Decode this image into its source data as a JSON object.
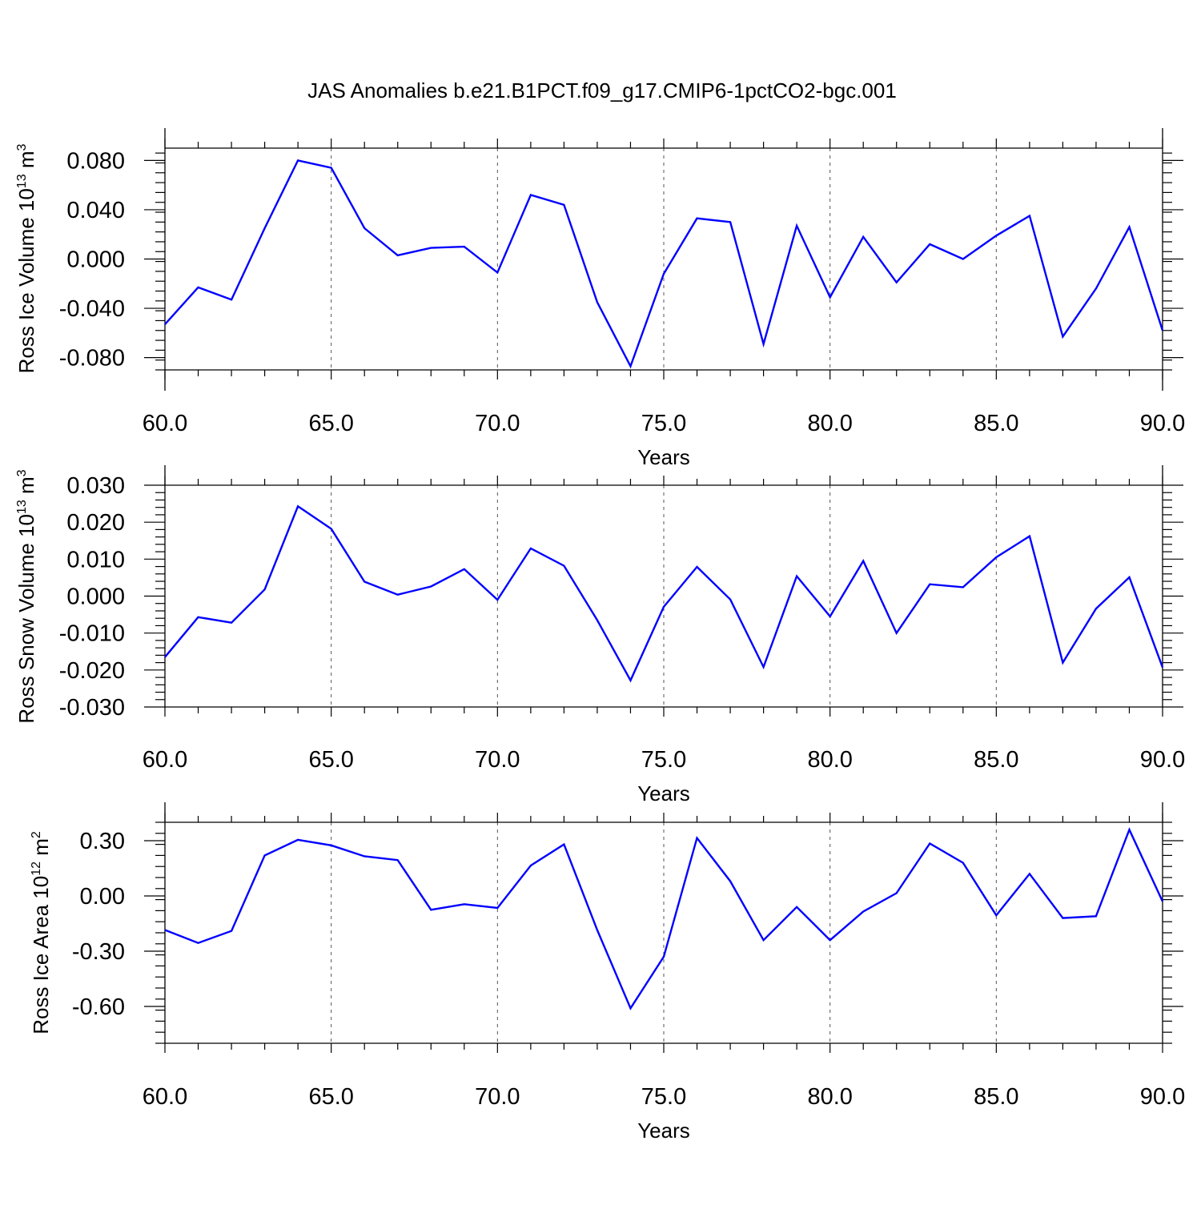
{
  "title": "JAS Anomalies b.e21.B1PCT.f09_g17.CMIP6-1pctCO2-bgc.001",
  "chart_data": [
    {
      "type": "line",
      "ylabel": "Ross Ice Volume 10",
      "ylabel_exp": "13",
      "ylabel_unit": " m",
      "ylabel_unit_exp": "3",
      "xlabel": "Years",
      "xlim": [
        60,
        90
      ],
      "ylim": [
        -0.09,
        0.09
      ],
      "xticks": [
        60,
        65,
        70,
        75,
        80,
        85,
        90
      ],
      "xtick_labels": [
        "60.0",
        "65.0",
        "70.0",
        "75.0",
        "80.0",
        "85.0",
        "90.0"
      ],
      "yticks": [
        -0.08,
        -0.04,
        0.0,
        0.04,
        0.08
      ],
      "ytick_labels": [
        "-0.080",
        "-0.040",
        "0.000",
        "0.040",
        "0.080"
      ],
      "grid": "vertical dashed",
      "line_color": "#0000ff",
      "x": [
        60,
        61,
        62,
        63,
        64,
        65,
        66,
        67,
        68,
        69,
        70,
        71,
        72,
        73,
        74,
        75,
        76,
        77,
        78,
        79,
        80,
        81,
        82,
        83,
        84,
        85,
        86,
        87,
        88,
        89,
        90
      ],
      "values": [
        -0.053,
        -0.023,
        -0.033,
        0.025,
        0.08,
        0.074,
        0.025,
        0.003,
        0.009,
        0.01,
        -0.011,
        0.052,
        0.044,
        -0.035,
        -0.087,
        -0.012,
        0.033,
        0.03,
        -0.069,
        0.027,
        -0.031,
        0.018,
        -0.019,
        0.012,
        0.0,
        0.019,
        0.035,
        -0.063,
        -0.024,
        0.026,
        -0.058
      ]
    },
    {
      "type": "line",
      "ylabel": "Ross Snow Volume 10",
      "ylabel_exp": "13",
      "ylabel_unit": " m",
      "ylabel_unit_exp": "3",
      "xlabel": "Years",
      "xlim": [
        60,
        90
      ],
      "ylim": [
        -0.03,
        0.03
      ],
      "xticks": [
        60,
        65,
        70,
        75,
        80,
        85,
        90
      ],
      "xtick_labels": [
        "60.0",
        "65.0",
        "70.0",
        "75.0",
        "80.0",
        "85.0",
        "90.0"
      ],
      "yticks": [
        -0.03,
        -0.02,
        -0.01,
        0.0,
        0.01,
        0.02,
        0.03
      ],
      "ytick_labels": [
        "-0.030",
        "-0.020",
        "-0.010",
        "0.000",
        "0.010",
        "0.020",
        "0.030"
      ],
      "grid": "vertical dashed",
      "line_color": "#0000ff",
      "x": [
        60,
        61,
        62,
        63,
        64,
        65,
        66,
        67,
        68,
        69,
        70,
        71,
        72,
        73,
        74,
        75,
        76,
        77,
        78,
        79,
        80,
        81,
        82,
        83,
        84,
        85,
        86,
        87,
        88,
        89,
        90
      ],
      "values": [
        -0.0165,
        -0.0057,
        -0.0072,
        0.0018,
        0.0243,
        0.0182,
        0.0039,
        0.0004,
        0.0026,
        0.0073,
        -0.001,
        0.0129,
        0.0082,
        -0.0065,
        -0.0228,
        -0.0029,
        0.0079,
        -0.0009,
        -0.0192,
        0.0054,
        -0.0055,
        0.0095,
        -0.01,
        0.0032,
        0.0024,
        0.0105,
        0.0162,
        -0.018,
        -0.0034,
        0.0051,
        -0.0193
      ]
    },
    {
      "type": "line",
      "ylabel": "Ross Ice Area 10",
      "ylabel_exp": "12",
      "ylabel_unit": " m",
      "ylabel_unit_exp": "2",
      "xlabel": "Years",
      "xlim": [
        60,
        90
      ],
      "ylim": [
        -0.8,
        0.4
      ],
      "xticks": [
        60,
        65,
        70,
        75,
        80,
        85,
        90
      ],
      "xtick_labels": [
        "60.0",
        "65.0",
        "70.0",
        "75.0",
        "80.0",
        "85.0",
        "90.0"
      ],
      "yticks": [
        -0.6,
        -0.3,
        0.0,
        0.3
      ],
      "ytick_labels": [
        "-0.60",
        "-0.30",
        "0.00",
        "0.30"
      ],
      "grid": "vertical dashed",
      "line_color": "#0000ff",
      "x": [
        60,
        61,
        62,
        63,
        64,
        65,
        66,
        67,
        68,
        69,
        70,
        71,
        72,
        73,
        74,
        75,
        76,
        77,
        78,
        79,
        80,
        81,
        82,
        83,
        84,
        85,
        86,
        87,
        88,
        89,
        90
      ],
      "values": [
        -0.185,
        -0.255,
        -0.19,
        0.22,
        0.305,
        0.275,
        0.215,
        0.195,
        -0.075,
        -0.045,
        -0.065,
        0.165,
        0.28,
        -0.185,
        -0.61,
        -0.33,
        0.315,
        0.08,
        -0.24,
        -0.06,
        -0.24,
        -0.085,
        0.015,
        0.285,
        0.18,
        -0.105,
        0.12,
        -0.12,
        -0.11,
        0.36,
        -0.03
      ]
    }
  ]
}
